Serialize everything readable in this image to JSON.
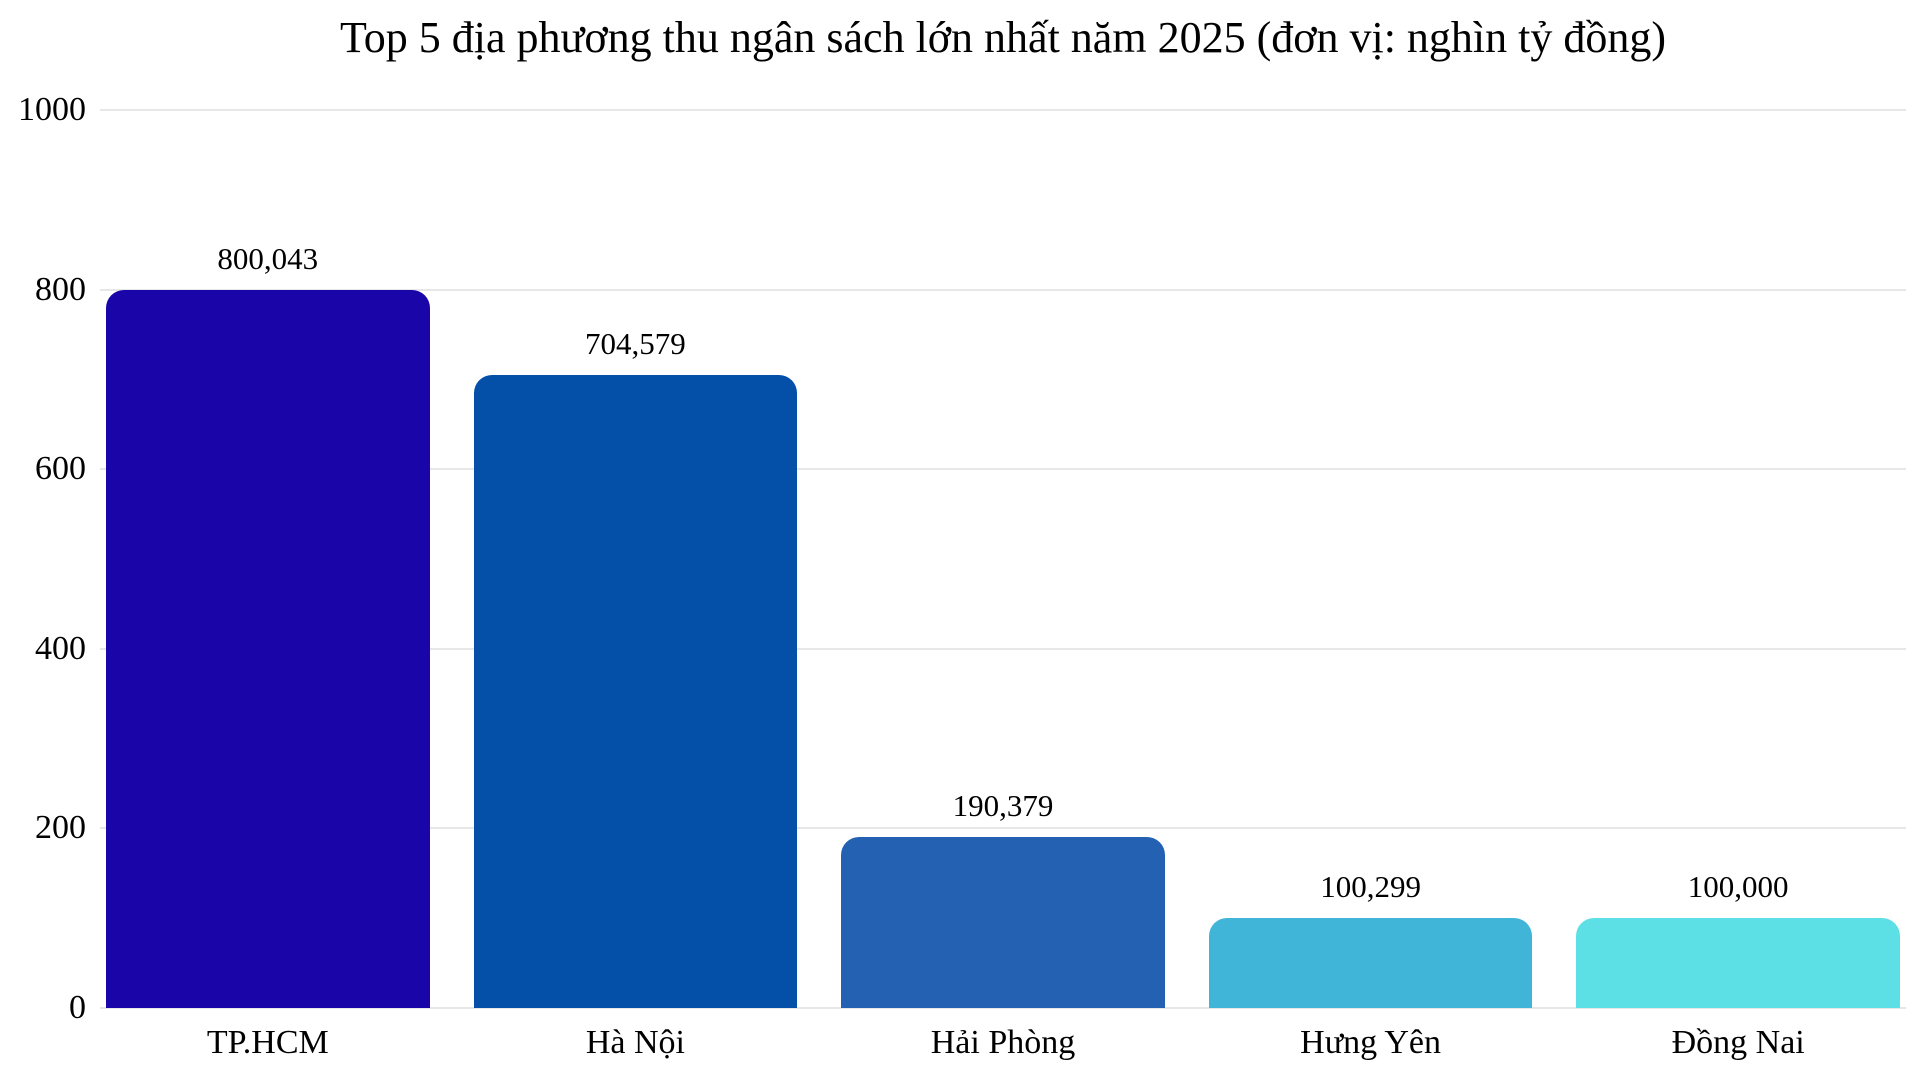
{
  "chart_data": {
    "type": "bar",
    "title": "Top 5 địa phương thu ngân sách lớn nhất năm 2025 (đơn vị: nghìn tỷ đồng)",
    "categories": [
      "TP.HCM",
      "Hà Nội",
      "Hải Phòng",
      "Hưng Yên",
      "Đồng Nai"
    ],
    "values": [
      800043,
      704579,
      190379,
      100299,
      100000
    ],
    "value_labels": [
      "800,043",
      "704,579",
      "190,379",
      "100,299",
      "100,000"
    ],
    "value_divisor": 1000,
    "ylim": [
      0,
      1000
    ],
    "yticks": [
      0,
      200,
      400,
      600,
      800,
      1000
    ],
    "xlabel": "",
    "ylabel": "",
    "grid": "horizontal",
    "legend": "none",
    "colors": [
      "#1A05A9",
      "#0450A8",
      "#2561B2",
      "#41B5D8",
      "#5CE0E5"
    ],
    "gridline_color": "#E7E7E7",
    "text_color": "#000000",
    "background_color": "#FFFFFF"
  }
}
